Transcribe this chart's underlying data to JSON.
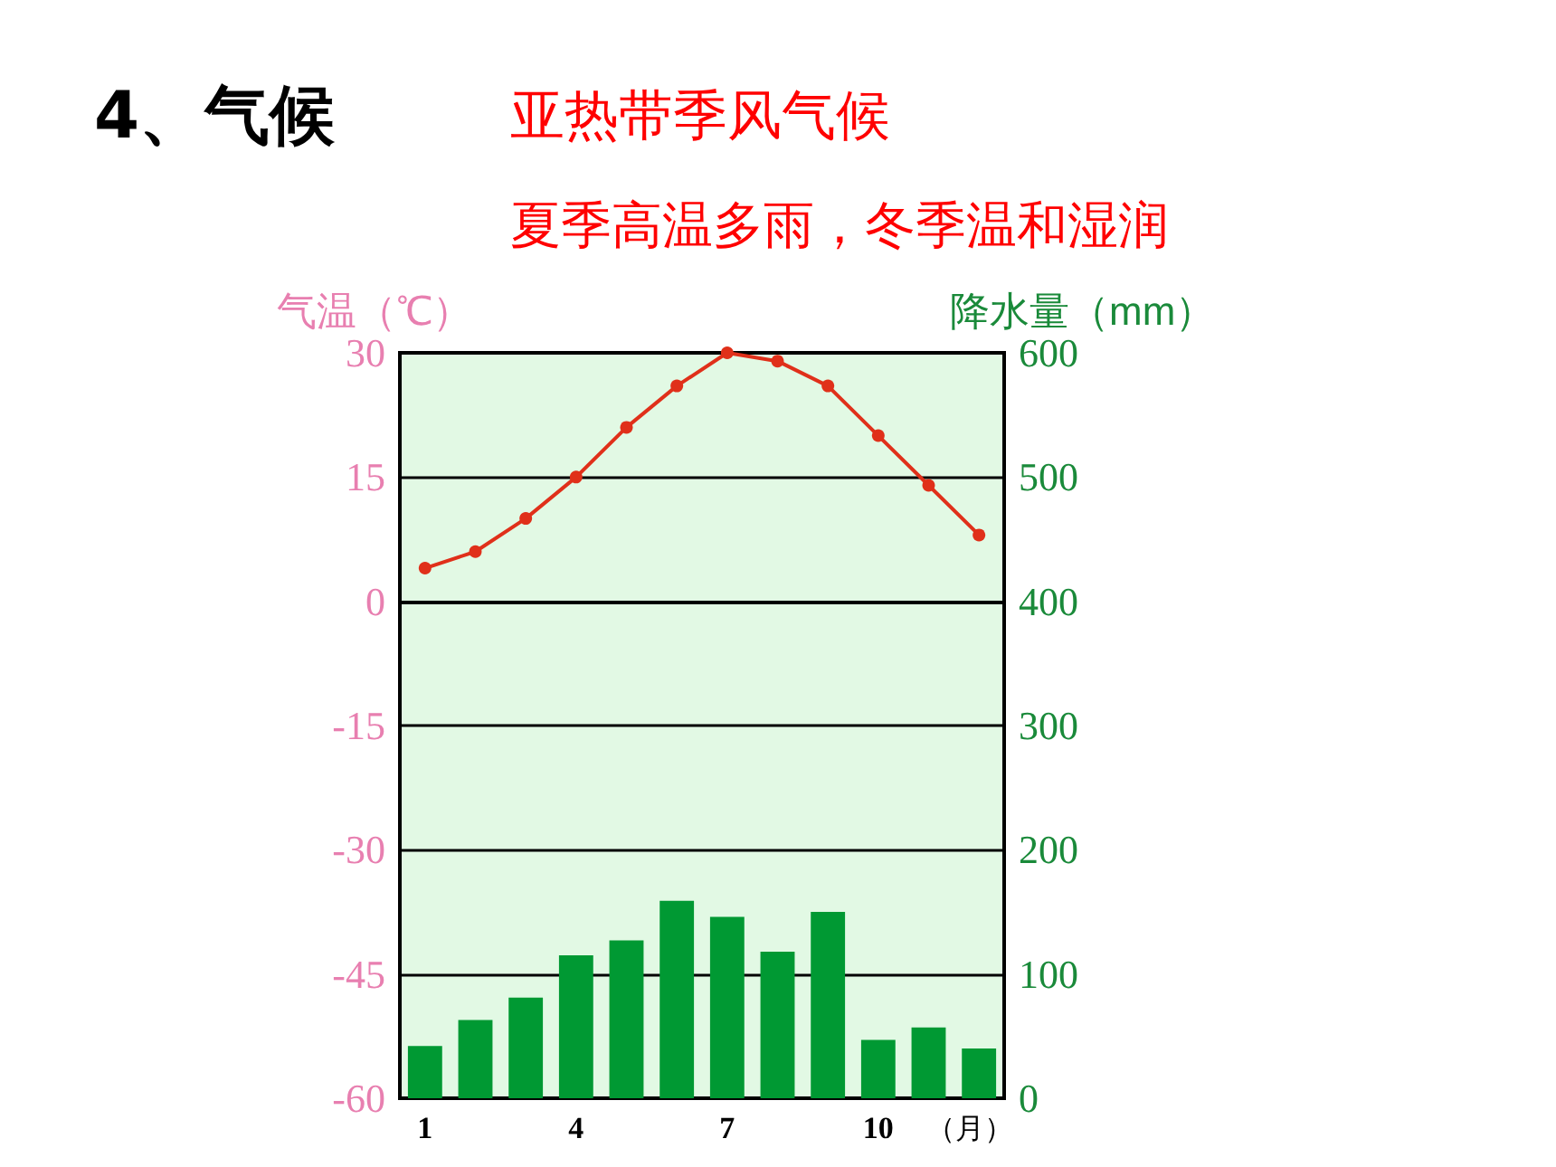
{
  "chart_data": {
    "type": "bar",
    "title": "4、气候",
    "subtitle": "亚热带季风气候",
    "annotations": [
      "夏季高温多雨，冬季温和湿润"
    ],
    "categories": [
      "1",
      null,
      null,
      "4",
      null,
      null,
      "7",
      null,
      null,
      "10",
      null,
      null
    ],
    "xlabel": "（月）",
    "ylabel": "气温（℃）",
    "y2label": "降水量（mm）",
    "series": [
      {
        "type": "line",
        "axis": "y",
        "color": "#e0301a",
        "marker": "circle",
        "line_style": "solid",
        "values": [
          4,
          6,
          10,
          15,
          21,
          26,
          30,
          29,
          26,
          20,
          14,
          8
        ]
      },
      {
        "axis": "y2",
        "color": "#009933",
        "values": [
          42,
          63,
          81,
          115,
          127,
          159,
          146,
          118,
          150,
          47,
          57,
          40
        ]
      }
    ],
    "ylim": [
      -60,
      30
    ],
    "yticks": [
      -60,
      -45,
      -30,
      -15,
      0,
      15,
      30
    ],
    "y2lim": [
      0,
      600
    ],
    "y2ticks": [
      0,
      100,
      200,
      300,
      400,
      500,
      600
    ],
    "grid": "y"
  }
}
